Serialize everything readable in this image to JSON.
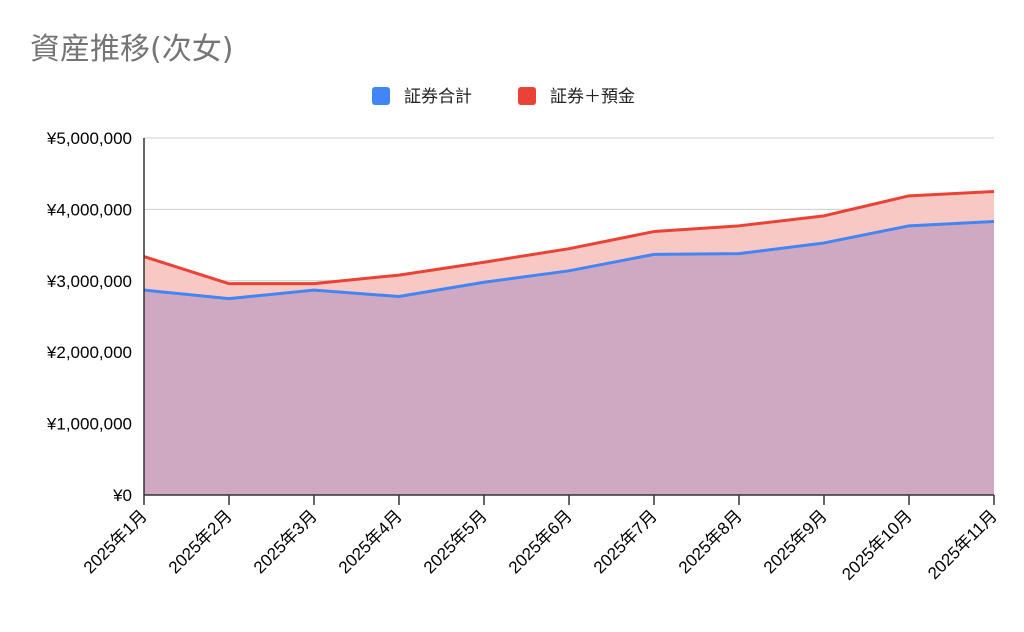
{
  "chart_data": {
    "type": "area",
    "title": "資産推移(次女)",
    "xlabel": "",
    "ylabel": "",
    "categories": [
      "2025年1月",
      "2025年2月",
      "2025年3月",
      "2025年4月",
      "2025年5月",
      "2025年6月",
      "2025年7月",
      "2025年8月",
      "2025年9月",
      "2025年10月",
      "2025年11月"
    ],
    "series": [
      {
        "name": "証券合計",
        "color": "#4285f4",
        "values": [
          2870000,
          2750000,
          2870000,
          2780000,
          2980000,
          3140000,
          3370000,
          3380000,
          3530000,
          3770000,
          3830000
        ]
      },
      {
        "name": "証券＋預金",
        "color": "#ea4335",
        "values": [
          3340000,
          2960000,
          2960000,
          3080000,
          3260000,
          3450000,
          3690000,
          3770000,
          3910000,
          4190000,
          4250000
        ]
      }
    ],
    "y_ticks": [
      "¥0",
      "¥1,000,000",
      "¥2,000,000",
      "¥3,000,000",
      "¥4,000,000",
      "¥5,000,000"
    ],
    "ylim": [
      0,
      5000000
    ],
    "grid": true,
    "legend_position": "top-center",
    "fill_colors": {
      "lower": "#cfa9c1",
      "upper": "#f8c8c4"
    },
    "gridline_color": "#cccccc"
  }
}
